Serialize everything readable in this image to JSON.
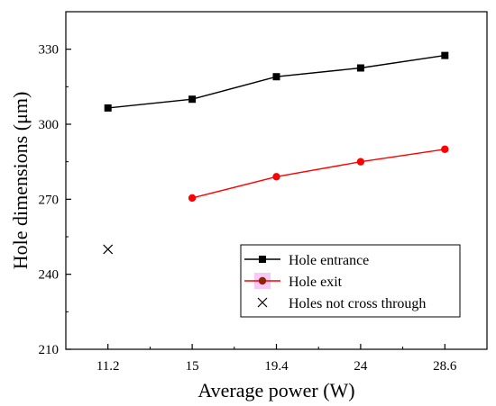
{
  "chart_data": {
    "type": "line",
    "title": "",
    "xlabel": "Average power (W)",
    "ylabel": "Hole dimensions (μm)",
    "categories": [
      "11.2",
      "15",
      "19.4",
      "24",
      "28.6"
    ],
    "ylim": [
      210,
      345
    ],
    "yticks": [
      210,
      240,
      270,
      300,
      330
    ],
    "series": [
      {
        "name": "Hole entrance",
        "color": "#000000",
        "marker": "square",
        "values": [
          306.5,
          310,
          319,
          322.5,
          327.5
        ]
      },
      {
        "name": "Hole exit",
        "color": "#ff0000",
        "marker": "circle",
        "values": [
          null,
          270.5,
          279,
          285,
          290
        ]
      },
      {
        "name": "Holes not cross through",
        "color": "#000000",
        "marker": "x",
        "values": [
          250,
          null,
          null,
          null,
          null
        ]
      }
    ],
    "legend": {
      "placement": "bottom-right",
      "exit_marker_color": "#8b2500",
      "exit_marker_highlight": "#f8c8f8"
    }
  }
}
